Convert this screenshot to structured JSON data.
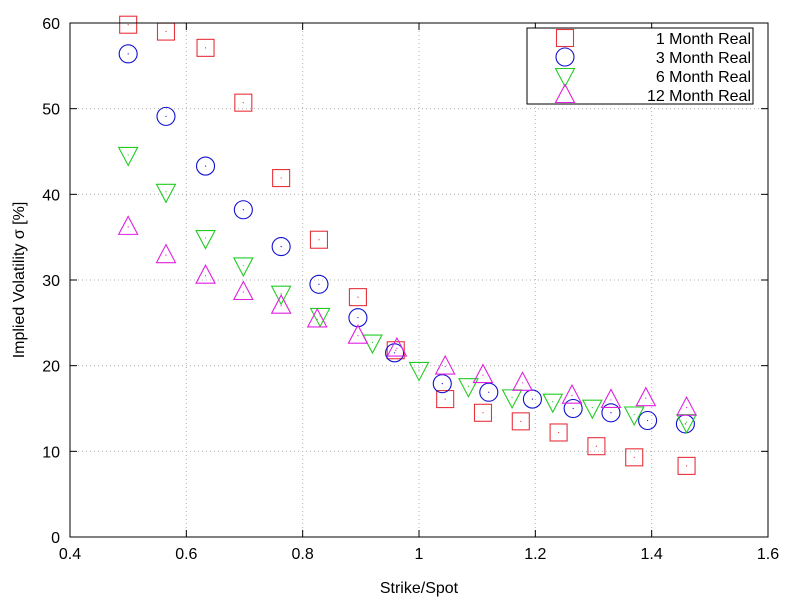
{
  "chart_data": {
    "type": "scatter",
    "xlabel": "Strike/Spot",
    "ylabel": "Implied Volatility  σ [%]",
    "xlim": [
      0.4,
      1.6
    ],
    "ylim": [
      0,
      60
    ],
    "xticks": [
      "0.4",
      "0.6",
      "0.8",
      "1",
      "1.2",
      "1.4",
      "1.6"
    ],
    "yticks": [
      "0",
      "10",
      "20",
      "30",
      "40",
      "50",
      "60"
    ],
    "grid": true,
    "legend_position": "top-right",
    "series": [
      {
        "name": "1 Month Real",
        "marker": "square",
        "color": "#e8323c",
        "points": [
          [
            0.5,
            59.8
          ],
          [
            0.565,
            59.0
          ],
          [
            0.633,
            57.1
          ],
          [
            0.698,
            50.7
          ],
          [
            0.763,
            41.9
          ],
          [
            0.828,
            34.7
          ],
          [
            0.895,
            28.0
          ],
          [
            0.96,
            21.8
          ],
          [
            1.045,
            16.1
          ],
          [
            1.11,
            14.5
          ],
          [
            1.175,
            13.5
          ],
          [
            1.24,
            12.2
          ],
          [
            1.305,
            10.6
          ],
          [
            1.37,
            9.3
          ],
          [
            1.46,
            8.3
          ]
        ]
      },
      {
        "name": "3 Month Real",
        "marker": "circle",
        "color": "#1010d0",
        "points": [
          [
            0.5,
            56.4
          ],
          [
            0.565,
            49.1
          ],
          [
            0.633,
            43.3
          ],
          [
            0.698,
            38.2
          ],
          [
            0.763,
            33.9
          ],
          [
            0.828,
            29.5
          ],
          [
            0.895,
            25.6
          ],
          [
            0.958,
            21.5
          ],
          [
            1.04,
            17.9
          ],
          [
            1.12,
            16.9
          ],
          [
            1.195,
            16.1
          ],
          [
            1.265,
            15.0
          ],
          [
            1.33,
            14.5
          ],
          [
            1.393,
            13.6
          ],
          [
            1.458,
            13.2
          ]
        ]
      },
      {
        "name": "6 Month Real",
        "marker": "triangle-down",
        "color": "#22cc22",
        "points": [
          [
            0.5,
            44.6
          ],
          [
            0.565,
            40.3
          ],
          [
            0.633,
            34.9
          ],
          [
            0.698,
            31.7
          ],
          [
            0.763,
            28.4
          ],
          [
            0.83,
            25.8
          ],
          [
            0.92,
            22.7
          ],
          [
            1.0,
            19.5
          ],
          [
            1.085,
            17.6
          ],
          [
            1.16,
            16.3
          ],
          [
            1.23,
            15.8
          ],
          [
            1.298,
            15.1
          ],
          [
            1.37,
            14.3
          ],
          [
            1.46,
            13.4
          ]
        ]
      },
      {
        "name": "12 Month Real",
        "marker": "triangle-up",
        "color": "#e020e0",
        "points": [
          [
            0.5,
            36.2
          ],
          [
            0.565,
            32.9
          ],
          [
            0.633,
            30.5
          ],
          [
            0.698,
            28.6
          ],
          [
            0.763,
            27.0
          ],
          [
            0.825,
            25.4
          ],
          [
            0.895,
            23.5
          ],
          [
            0.962,
            22.0
          ],
          [
            1.045,
            19.9
          ],
          [
            1.11,
            18.9
          ],
          [
            1.178,
            18.0
          ],
          [
            1.263,
            16.5
          ],
          [
            1.33,
            16.0
          ],
          [
            1.39,
            16.2
          ],
          [
            1.46,
            15.1
          ]
        ]
      }
    ]
  }
}
